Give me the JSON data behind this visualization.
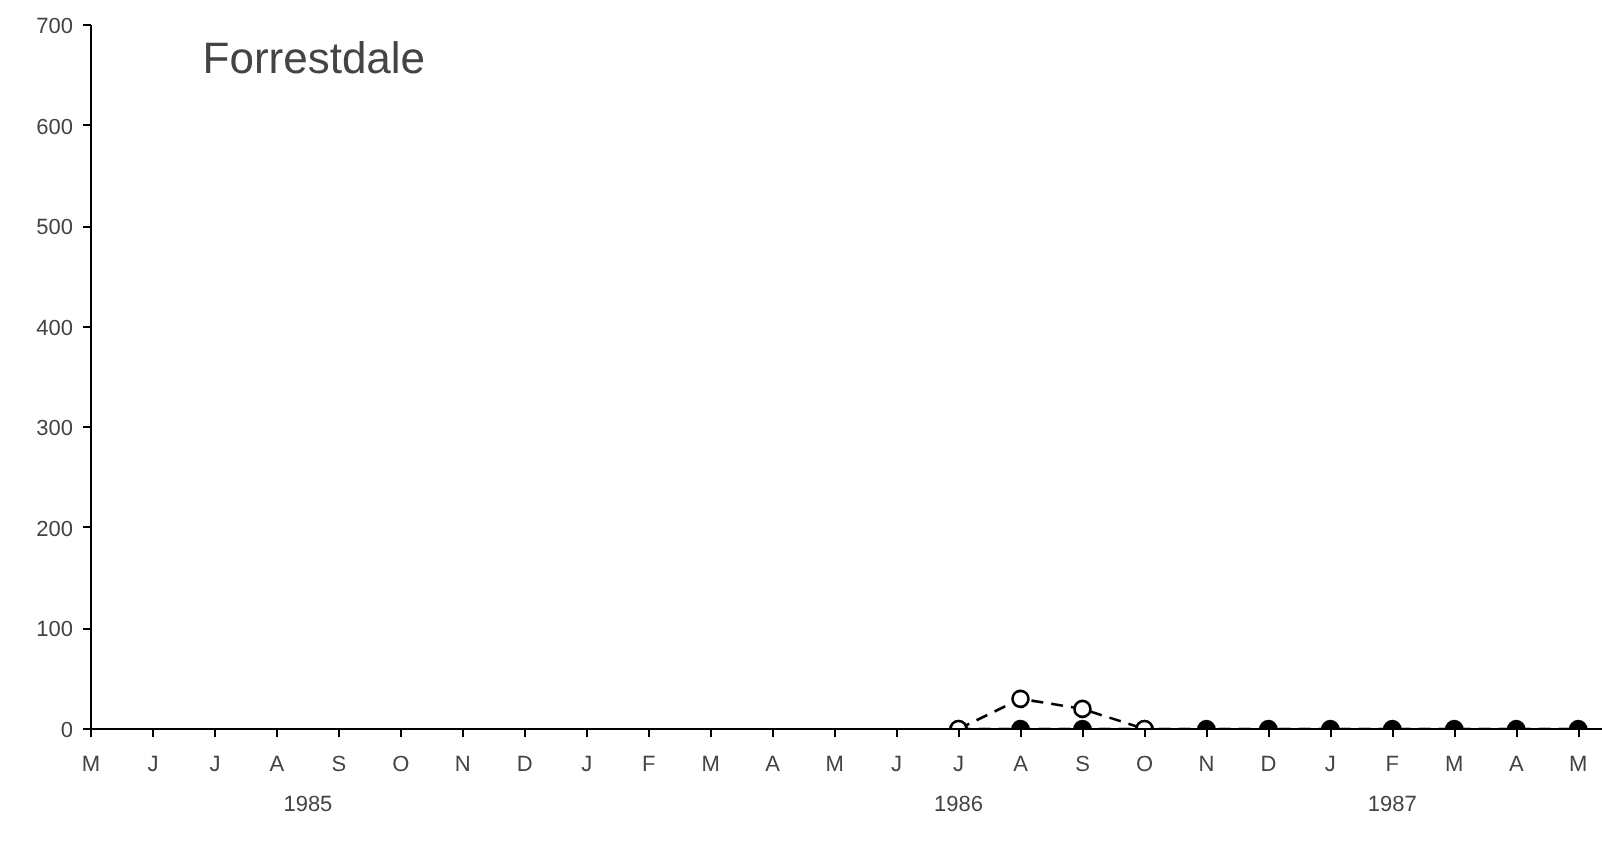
{
  "chart_data": {
    "type": "line",
    "title": "Forrestdale",
    "categories": [
      "M",
      "J",
      "J",
      "A",
      "S",
      "O",
      "N",
      "D",
      "J",
      "F",
      "M",
      "A",
      "M",
      "J",
      "J",
      "A",
      "S",
      "O",
      "N",
      "D",
      "J",
      "F",
      "M",
      "A",
      "M"
    ],
    "series": [
      {
        "color": "#000000",
        "marker": "circle",
        "values": [
          null,
          null,
          null,
          null,
          null,
          null,
          null,
          null,
          null,
          null,
          null,
          null,
          null,
          null,
          0,
          0,
          0,
          0,
          0,
          0,
          0,
          0,
          0,
          0,
          0
        ]
      },
      {
        "color": "#000000",
        "marker": "circle",
        "values": [
          null,
          null,
          null,
          null,
          null,
          null,
          null,
          null,
          null,
          null,
          null,
          null,
          null,
          null,
          0,
          30,
          20,
          0,
          null,
          null,
          null,
          null,
          null,
          null,
          null
        ]
      }
    ],
    "annotations": [
      "1985",
      "1986",
      "1987"
    ],
    "ylim": [
      0,
      700
    ],
    "yticks": [
      0,
      100,
      200,
      300,
      400,
      500,
      600,
      700
    ],
    "line_style": "dashed",
    "grid": false
  }
}
